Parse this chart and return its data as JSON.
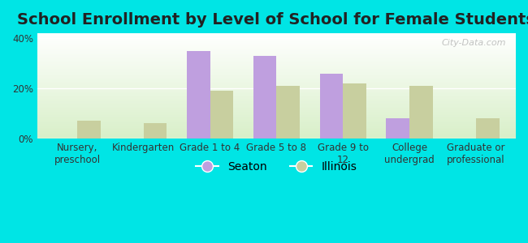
{
  "title": "School Enrollment by Level of School for Female Students",
  "categories": [
    "Nursery,\npreschool",
    "Kindergarten",
    "Grade 1 to 4",
    "Grade 5 to 8",
    "Grade 9 to\n12",
    "College\nundergrad",
    "Graduate or\nprofessional"
  ],
  "seaton": [
    0,
    0,
    35,
    33,
    26,
    8,
    0
  ],
  "illinois": [
    7,
    6,
    19,
    21,
    22,
    21,
    8
  ],
  "seaton_color": "#bf9fdf",
  "illinois_color": "#c8cf9f",
  "background_color": "#00e5e5",
  "grad_bottom": "#d8efc8",
  "grad_top": "#ffffff",
  "ylim": [
    0,
    42
  ],
  "yticks": [
    0,
    20,
    40
  ],
  "ytick_labels": [
    "0%",
    "20%",
    "40%"
  ],
  "legend_seaton": "Seaton",
  "legend_illinois": "Illinois",
  "watermark": "City-Data.com",
  "title_fontsize": 14,
  "tick_fontsize": 8.5,
  "legend_fontsize": 10
}
